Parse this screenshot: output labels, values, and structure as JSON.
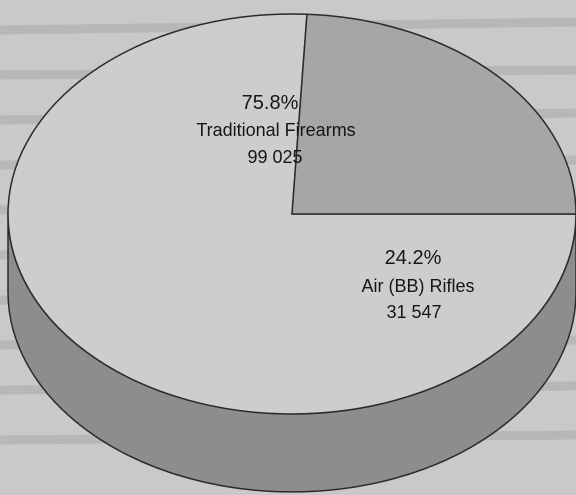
{
  "chart_data": {
    "type": "pie",
    "style": "3d",
    "slices": [
      {
        "label": "Traditional Firearms",
        "value": 99025,
        "percent": "75.8%",
        "value_label": "99 025",
        "color": "#cdcdcd",
        "side_color": "#8d8d8d"
      },
      {
        "label": "Air (BB) Rifles",
        "value": 31547,
        "percent": "24.2%",
        "value_label": "31 547",
        "color": "#a6a6a6",
        "side_color": "#6c6c6c"
      }
    ],
    "outline_color": "#2b2b2b",
    "legend": "none"
  }
}
